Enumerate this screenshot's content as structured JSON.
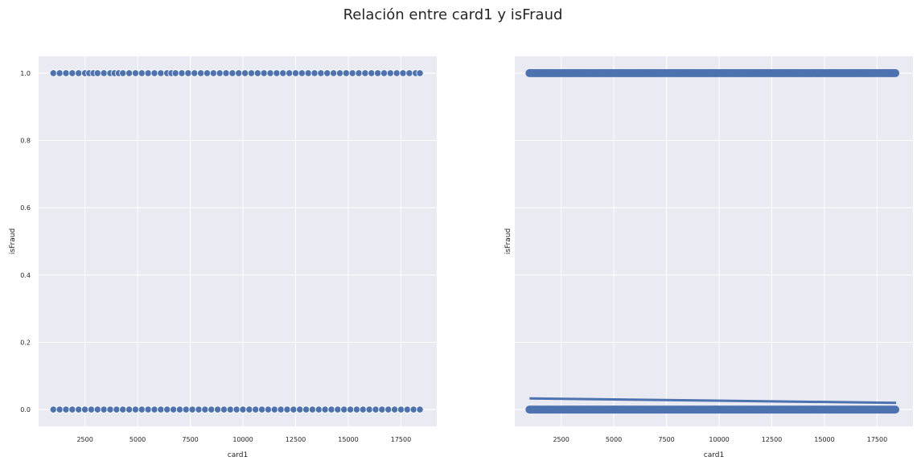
{
  "figure": {
    "title": "Relación entre card1 y isFraud"
  },
  "chart_data": [
    {
      "type": "scatter",
      "title": "",
      "xlabel": "card1",
      "ylabel": "isFraud",
      "xlim": [
        300,
        19200
      ],
      "ylim": [
        -0.05,
        1.05
      ],
      "xticks": [
        2500,
        5000,
        7500,
        10000,
        12500,
        15000,
        17500
      ],
      "yticks": [
        0.0,
        0.2,
        0.4,
        0.6,
        0.8,
        1.0
      ],
      "xtick_labels": [
        "2500",
        "5000",
        "7500",
        "10000",
        "12500",
        "15000",
        "17500"
      ],
      "ytick_labels": [
        "0.0",
        "0.2",
        "0.4",
        "0.6",
        "0.8",
        "1.0"
      ],
      "grid": true,
      "background": "#EAEAF2",
      "marker_color": "#4C72B0",
      "series": [
        {
          "y": 1,
          "x": [
            1000,
            1300,
            1600,
            1900,
            2200,
            2500,
            2700,
            2900,
            3100,
            3400,
            3700,
            3900,
            4100,
            4300,
            4600,
            4900,
            5200,
            5500,
            5800,
            6100,
            6400,
            6600,
            6800,
            7100,
            7400,
            7700,
            8000,
            8300,
            8600,
            8900,
            9200,
            9500,
            9800,
            10100,
            10400,
            10700,
            11000,
            11300,
            11600,
            11900,
            12200,
            12500,
            12800,
            13100,
            13400,
            13700,
            14000,
            14300,
            14600,
            14900,
            15200,
            15500,
            15800,
            16100,
            16400,
            16700,
            17000,
            17300,
            17600,
            17900,
            18200,
            18400
          ]
        },
        {
          "y": 0,
          "x": [
            1000,
            1300,
            1600,
            1900,
            2200,
            2500,
            2800,
            3100,
            3400,
            3700,
            4000,
            4300,
            4600,
            4900,
            5200,
            5500,
            5800,
            6100,
            6400,
            6700,
            7000,
            7300,
            7600,
            7900,
            8200,
            8500,
            8800,
            9100,
            9400,
            9700,
            10000,
            10300,
            10600,
            10900,
            11200,
            11500,
            11800,
            12100,
            12400,
            12700,
            13000,
            13300,
            13600,
            13900,
            14200,
            14500,
            14800,
            15100,
            15400,
            15700,
            16000,
            16300,
            16600,
            16900,
            17200,
            17500,
            17800,
            18100,
            18400
          ]
        }
      ]
    },
    {
      "type": "scatter",
      "title": "",
      "xlabel": "card1",
      "ylabel": "isFraud",
      "xlim": [
        300,
        19200
      ],
      "ylim": [
        -0.05,
        1.05
      ],
      "xticks": [
        2500,
        5000,
        7500,
        10000,
        12500,
        15000,
        17500
      ],
      "yticks": [
        0.0,
        0.2,
        0.4,
        0.6,
        0.8,
        1.0
      ],
      "xtick_labels": [
        "2500",
        "5000",
        "7500",
        "10000",
        "12500",
        "15000",
        "17500"
      ],
      "ytick_labels": [],
      "grid": true,
      "background": "#EAEAF2",
      "marker_color": "#4C72B0",
      "series": [
        {
          "y": 1,
          "x_range": [
            1000,
            18400
          ]
        },
        {
          "y": 0,
          "x_range": [
            1000,
            18400
          ]
        }
      ],
      "regression_line": {
        "x": [
          1000,
          18400
        ],
        "y": [
          0.033,
          0.02
        ]
      }
    }
  ]
}
